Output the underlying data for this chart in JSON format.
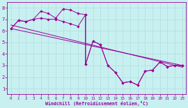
{
  "xlabel": "Windchill (Refroidissement éolien,°C)",
  "background_color": "#c8f0f0",
  "grid_color": "#b0dede",
  "line_color": "#990099",
  "xlim": [
    -0.5,
    23.5
  ],
  "ylim": [
    0.5,
    8.5
  ],
  "xticks": [
    0,
    1,
    2,
    3,
    4,
    5,
    6,
    7,
    8,
    9,
    10,
    11,
    12,
    13,
    14,
    15,
    16,
    17,
    18,
    19,
    20,
    21,
    22,
    23
  ],
  "yticks": [
    1,
    2,
    3,
    4,
    5,
    6,
    7,
    8
  ],
  "line1_x": [
    0,
    1,
    2,
    3,
    4,
    5,
    6,
    7,
    8,
    9,
    10,
    10,
    11,
    12,
    13,
    14,
    15,
    16,
    17,
    18,
    19,
    20,
    21,
    22,
    23
  ],
  "line1_y": [
    6.2,
    6.9,
    6.8,
    7.0,
    7.1,
    7.0,
    7.0,
    6.8,
    6.6,
    6.4,
    7.4,
    3.1,
    5.1,
    4.8,
    3.0,
    2.4,
    1.5,
    1.6,
    1.3,
    2.5,
    2.6,
    3.3,
    2.9,
    3.0,
    3.0
  ],
  "line2_x": [
    0,
    1,
    2,
    3,
    4,
    5,
    6,
    7,
    8,
    9,
    10,
    10,
    11,
    12,
    13,
    14,
    15,
    16,
    17,
    18,
    19,
    20,
    21,
    22,
    23
  ],
  "line2_y": [
    6.2,
    6.9,
    6.8,
    7.0,
    7.7,
    7.5,
    7.1,
    7.9,
    7.8,
    7.5,
    7.4,
    3.1,
    5.1,
    4.8,
    3.0,
    2.4,
    1.5,
    1.6,
    1.3,
    2.5,
    2.6,
    3.3,
    2.9,
    3.0,
    3.0
  ],
  "line3_x": [
    0,
    23
  ],
  "line3_y": [
    6.2,
    3.0
  ],
  "line4_x": [
    0,
    23
  ],
  "line4_y": [
    6.5,
    2.85
  ]
}
